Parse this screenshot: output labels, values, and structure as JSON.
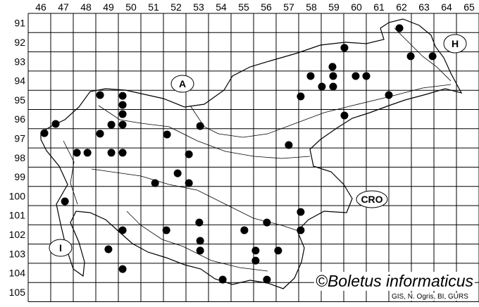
{
  "columns": [
    "46",
    "47",
    "48",
    "49",
    "50",
    "51",
    "52",
    "53",
    "54",
    "55",
    "56",
    "57",
    "58",
    "59",
    "60",
    "61",
    "62",
    "63",
    "64",
    "65"
  ],
  "rows": [
    "91",
    "92",
    "93",
    "94",
    "95",
    "96",
    "97",
    "98",
    "99",
    "100",
    "101",
    "102",
    "103",
    "104",
    "105"
  ],
  "country_labels": {
    "austria": "A",
    "hungary": "H",
    "croatia": "CRO",
    "italy": "I"
  },
  "credit": "©Boletus informaticus",
  "source": "GIS, N. Ogris, BI, GURS",
  "dot_color": "#000000",
  "records": [
    [
      62.47,
      91.77
    ],
    [
      60.03,
      92.79
    ],
    [
      62.97,
      93.23
    ],
    [
      63.94,
      93.23
    ],
    [
      59.5,
      93.78
    ],
    [
      58.53,
      94.26
    ],
    [
      59.53,
      94.26
    ],
    [
      60.53,
      94.26
    ],
    [
      61.0,
      94.26
    ],
    [
      59.03,
      94.81
    ],
    [
      59.53,
      94.81
    ],
    [
      58.09,
      95.32
    ],
    [
      62.0,
      95.25
    ],
    [
      49.19,
      95.25
    ],
    [
      50.19,
      95.29
    ],
    [
      50.19,
      95.76
    ],
    [
      50.19,
      96.24
    ],
    [
      49.69,
      96.79
    ],
    [
      50.19,
      96.79
    ],
    [
      53.63,
      96.86
    ],
    [
      60.03,
      96.31
    ],
    [
      47.22,
      96.75
    ],
    [
      46.72,
      97.23
    ],
    [
      49.19,
      97.26
    ],
    [
      52.16,
      97.3
    ],
    [
      57.56,
      97.85
    ],
    [
      48.16,
      98.25
    ],
    [
      48.63,
      98.25
    ],
    [
      49.69,
      98.25
    ],
    [
      50.19,
      98.25
    ],
    [
      53.13,
      98.33
    ],
    [
      52.63,
      99.32
    ],
    [
      51.63,
      99.83
    ],
    [
      53.13,
      99.83
    ],
    [
      47.63,
      100.78
    ],
    [
      58.09,
      101.33
    ],
    [
      53.59,
      101.88
    ],
    [
      56.59,
      101.88
    ],
    [
      50.19,
      102.28
    ],
    [
      52.13,
      102.28
    ],
    [
      55.59,
      102.28
    ],
    [
      58.09,
      102.28
    ],
    [
      53.63,
      102.83
    ],
    [
      49.56,
      103.27
    ],
    [
      53.63,
      103.34
    ],
    [
      56.09,
      103.34
    ],
    [
      57.09,
      103.34
    ],
    [
      56.09,
      103.86
    ],
    [
      50.19,
      104.3
    ],
    [
      54.63,
      104.85
    ],
    [
      56.59,
      104.85
    ]
  ]
}
